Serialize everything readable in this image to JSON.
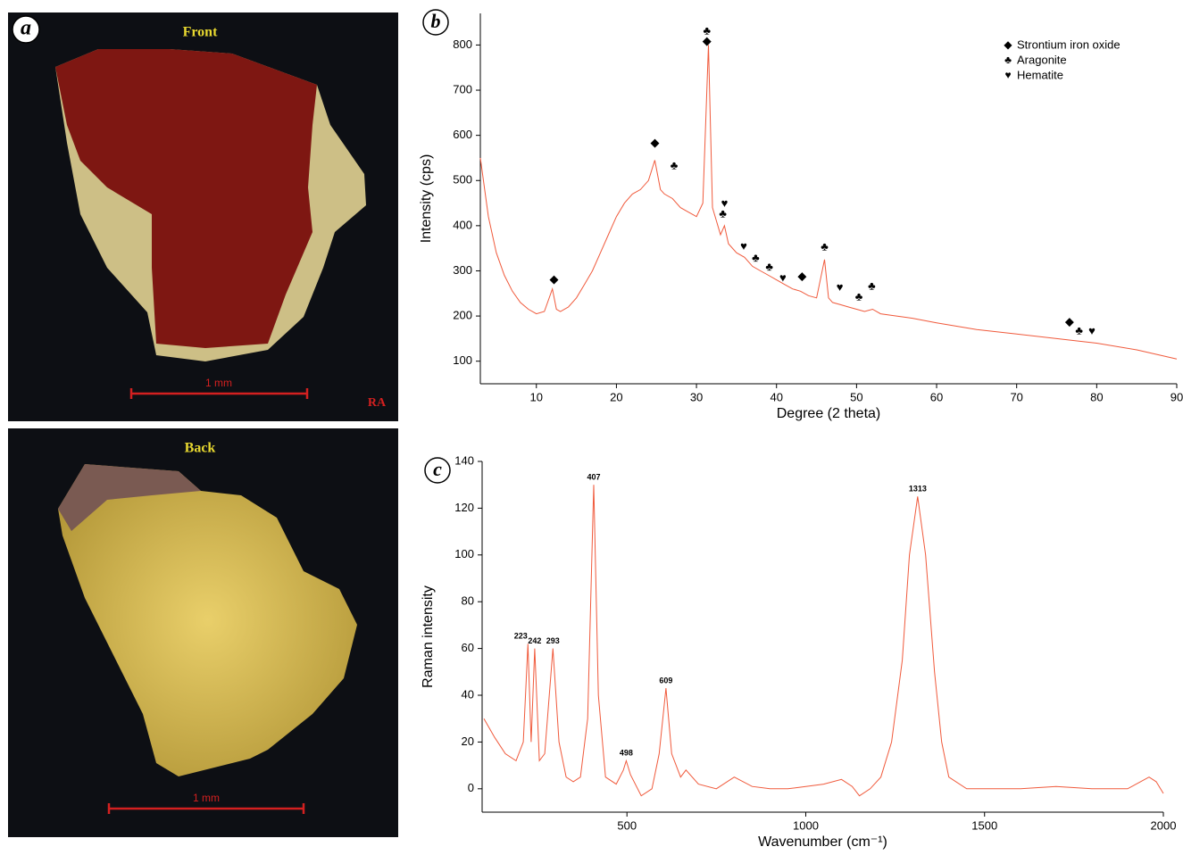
{
  "photos": [
    {
      "label": "a",
      "title": "Front",
      "scale": "1 mm",
      "mark": "RA"
    },
    {
      "title": "Back",
      "scale": "1 mm"
    }
  ],
  "chart_data": [
    {
      "type": "line",
      "panel_label": "b",
      "color": "#f05a3c",
      "x_label": "Degree (2 theta)",
      "y_label": "Intensity (cps)",
      "xlim": [
        3,
        90
      ],
      "ylim": [
        50,
        870
      ],
      "xticks": [
        10,
        20,
        30,
        40,
        50,
        60,
        70,
        80,
        90
      ],
      "yticks": [
        100,
        200,
        300,
        400,
        500,
        600,
        700,
        800
      ],
      "x": [
        3,
        4,
        5,
        6,
        7,
        8,
        9,
        10,
        11,
        12,
        12.5,
        13,
        14,
        15,
        16,
        17,
        18,
        19,
        20,
        21,
        22,
        23,
        24,
        24.8,
        25.5,
        26,
        27,
        28,
        29,
        30,
        30.8,
        31.5,
        32,
        33,
        33.5,
        34,
        35,
        36,
        37,
        38,
        39,
        40,
        41,
        42,
        43,
        44,
        45,
        46,
        46.5,
        47,
        48,
        49,
        50,
        51,
        52,
        53,
        55,
        57,
        60,
        65,
        70,
        75,
        80,
        85,
        90
      ],
      "values": [
        550,
        420,
        340,
        290,
        255,
        230,
        215,
        205,
        210,
        260,
        215,
        210,
        220,
        240,
        270,
        300,
        340,
        380,
        420,
        450,
        470,
        480,
        500,
        545,
        480,
        470,
        460,
        440,
        430,
        420,
        450,
        800,
        440,
        380,
        400,
        360,
        340,
        330,
        310,
        300,
        290,
        280,
        270,
        260,
        255,
        245,
        240,
        325,
        240,
        230,
        225,
        220,
        215,
        210,
        215,
        205,
        200,
        195,
        185,
        170,
        160,
        150,
        140,
        125,
        105
      ],
      "legend": [
        {
          "symbol": "◆",
          "name": "Strontium iron oxide"
        },
        {
          "symbol": "♣",
          "name": "Aragonite"
        },
        {
          "symbol": "♥",
          "name": "Hematite"
        }
      ],
      "annotations": [
        {
          "symbol": "◆",
          "x": 12.2,
          "y": 280
        },
        {
          "symbol": "◆",
          "x": 24.8,
          "y": 582
        },
        {
          "symbol": "♣",
          "x": 27.2,
          "y": 532
        },
        {
          "symbol": "♣",
          "x": 31.3,
          "y": 830
        },
        {
          "symbol": "◆",
          "x": 31.3,
          "y": 808
        },
        {
          "symbol": "♥",
          "x": 33.5,
          "y": 448
        },
        {
          "symbol": "♣",
          "x": 33.3,
          "y": 425
        },
        {
          "symbol": "♥",
          "x": 35.9,
          "y": 353
        },
        {
          "symbol": "♣",
          "x": 37.4,
          "y": 327
        },
        {
          "symbol": "♣",
          "x": 39.1,
          "y": 308
        },
        {
          "symbol": "♥",
          "x": 40.8,
          "y": 283
        },
        {
          "symbol": "◆",
          "x": 43.2,
          "y": 287
        },
        {
          "symbol": "♣",
          "x": 46.0,
          "y": 352
        },
        {
          "symbol": "♥",
          "x": 47.9,
          "y": 262
        },
        {
          "symbol": "♣",
          "x": 50.3,
          "y": 242
        },
        {
          "symbol": "♣",
          "x": 51.9,
          "y": 265
        },
        {
          "symbol": "◆",
          "x": 76.6,
          "y": 186
        },
        {
          "symbol": "♣",
          "x": 77.8,
          "y": 166
        },
        {
          "symbol": "♥",
          "x": 79.4,
          "y": 165
        }
      ]
    },
    {
      "type": "line",
      "panel_label": "c",
      "color": "#f05a3c",
      "x_label": "Wavenumber (cm⁻¹)",
      "y_label": "Raman intensity",
      "xlim": [
        95,
        2000
      ],
      "ylim": [
        -10,
        140
      ],
      "xticks": [
        500,
        1000,
        1500,
        2000
      ],
      "yticks": [
        0,
        20,
        40,
        60,
        80,
        100,
        120,
        140
      ],
      "x": [
        100,
        130,
        160,
        190,
        210,
        223,
        232,
        242,
        255,
        270,
        293,
        310,
        330,
        350,
        370,
        390,
        407,
        420,
        440,
        470,
        490,
        498,
        510,
        540,
        570,
        590,
        609,
        625,
        650,
        665,
        700,
        750,
        800,
        850,
        900,
        950,
        1000,
        1050,
        1100,
        1130,
        1150,
        1180,
        1210,
        1240,
        1270,
        1290,
        1313,
        1335,
        1360,
        1380,
        1400,
        1450,
        1500,
        1600,
        1700,
        1800,
        1900,
        1960,
        1980,
        2000
      ],
      "values": [
        30,
        22,
        15,
        12,
        20,
        62,
        20,
        60,
        12,
        15,
        60,
        20,
        5,
        3,
        5,
        30,
        130,
        40,
        5,
        2,
        8,
        12,
        6,
        -3,
        0,
        15,
        43,
        15,
        5,
        8,
        2,
        0,
        5,
        1,
        0,
        0,
        1,
        2,
        4,
        1,
        -3,
        0,
        5,
        20,
        55,
        100,
        125,
        100,
        50,
        20,
        5,
        0,
        0,
        0,
        1,
        0,
        0,
        5,
        3,
        -2
      ],
      "annotations": [
        {
          "x": 223,
          "y": 62
        },
        {
          "x": 242,
          "y": 60
        },
        {
          "x": 293,
          "y": 60
        },
        {
          "x": 407,
          "y": 130
        },
        {
          "x": 498,
          "y": 12
        },
        {
          "x": 609,
          "y": 43
        },
        {
          "x": 1313,
          "y": 125
        }
      ]
    }
  ]
}
